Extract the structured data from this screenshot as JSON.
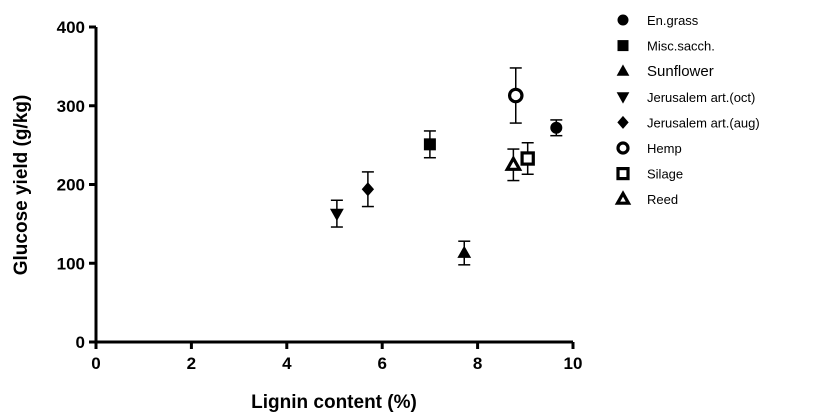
{
  "chart_data": {
    "type": "scatter",
    "xlabel": "Lignin content (%)",
    "ylabel": "Glucose yield (g/kg)",
    "xlim": [
      0,
      10
    ],
    "ylim": [
      0,
      400
    ],
    "xticks": [
      "0",
      "2",
      "4",
      "6",
      "8",
      "10"
    ],
    "yticks": [
      "0",
      "100",
      "200",
      "300",
      "400"
    ],
    "grid": false,
    "legend_position": "right",
    "series": [
      {
        "name": "En.grass",
        "marker": "circle",
        "filled": true,
        "x": 9.65,
        "y": 272,
        "error": 10
      },
      {
        "name": "Misc.sacch.",
        "marker": "square",
        "filled": true,
        "x": 7.0,
        "y": 251,
        "error": 17
      },
      {
        "name": "Sunflower",
        "marker": "triangle-up",
        "filled": true,
        "x": 7.72,
        "y": 113,
        "error": 15
      },
      {
        "name": "Jerusalem art.(oct)",
        "marker": "triangle-down",
        "filled": true,
        "x": 5.05,
        "y": 163,
        "error": 17
      },
      {
        "name": "Jerusalem art.(aug)",
        "marker": "diamond",
        "filled": true,
        "x": 5.7,
        "y": 194,
        "error": 22
      },
      {
        "name": "Hemp",
        "marker": "circle",
        "filled": false,
        "x": 8.8,
        "y": 313,
        "error": 35
      },
      {
        "name": "Silage",
        "marker": "square",
        "filled": false,
        "x": 9.05,
        "y": 233,
        "error": 20
      },
      {
        "name": "Reed",
        "marker": "triangle-up",
        "filled": false,
        "x": 8.75,
        "y": 225,
        "error": 20
      }
    ]
  }
}
